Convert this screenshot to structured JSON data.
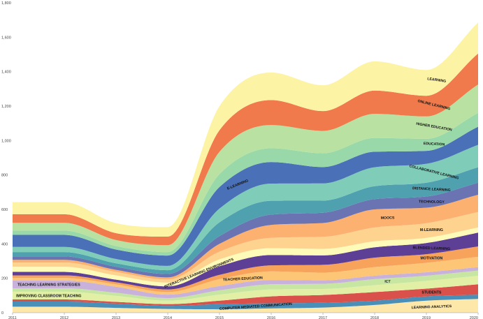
{
  "chart_data": {
    "type": "area",
    "subtype": "streamgraph",
    "title": "",
    "xlabel": "",
    "ylabel": "",
    "x": [
      2011,
      2012,
      2013,
      2014,
      2015,
      2016,
      2017,
      2018,
      2019,
      2020
    ],
    "ylim": [
      0,
      1800
    ],
    "yticks": [
      0,
      200,
      400,
      600,
      800,
      1000,
      1200,
      1400,
      1600,
      1800
    ],
    "ytick_labels": [
      "0",
      "200",
      "400",
      "600",
      "800",
      "1,000",
      "1,200",
      "1,400",
      "1,600",
      "1,800"
    ],
    "xtick_labels": [
      "2011",
      "2012",
      "2013",
      "2014",
      "2015",
      "2016",
      "2017",
      "2018",
      "2019",
      "2020"
    ],
    "series": [
      {
        "name": "LEARNING ANALYTICS",
        "color": "#fde7a9",
        "values": [
          35,
          35,
          28,
          22,
          20,
          25,
          30,
          45,
          70,
          80
        ]
      },
      {
        "name": "COMPUTER MEDIATED COMMUNICATION",
        "color": "#4a8fb8",
        "values": [
          30,
          30,
          25,
          18,
          30,
          30,
          28,
          25,
          25,
          25
        ]
      },
      {
        "name": "STUDENTS",
        "color": "#d9514a",
        "values": [
          12,
          12,
          10,
          10,
          20,
          40,
          45,
          50,
          45,
          60
        ]
      },
      {
        "name": "IMPROVING CLASSROOM TEACHING",
        "color": "#e2f0a6",
        "values": [
          45,
          45,
          35,
          20,
          35,
          40,
          35,
          40,
          45,
          50
        ]
      },
      {
        "name": "ICT",
        "color": "#c7e6a2",
        "values": [
          20,
          20,
          18,
          15,
          25,
          30,
          30,
          35,
          30,
          30
        ]
      },
      {
        "name": "TEACHING LEARNING STRATEGIES",
        "color": "#c8b2dc",
        "values": [
          45,
          45,
          35,
          20,
          25,
          25,
          20,
          20,
          20,
          20
        ]
      },
      {
        "name": "TEACHER EDUCATION",
        "color": "#fdc576",
        "values": [
          15,
          15,
          14,
          15,
          40,
          50,
          45,
          50,
          55,
          60
        ]
      },
      {
        "name": "MOTIVATION",
        "color": "#f7a35c",
        "values": [
          15,
          15,
          12,
          15,
          25,
          35,
          45,
          55,
          50,
          60
        ]
      },
      {
        "name": "BLENDED LEARNING",
        "color": "#5e3f96",
        "values": [
          20,
          20,
          15,
          18,
          50,
          60,
          55,
          60,
          65,
          80
        ]
      },
      {
        "name": "INTERACTIVE LEARNING ENVIRONMENTS",
        "color": "#fefab8",
        "values": [
          30,
          30,
          25,
          22,
          40,
          40,
          38,
          35,
          30,
          30
        ]
      },
      {
        "name": "M-LEARNING",
        "color": "#fed28f",
        "values": [
          25,
          25,
          20,
          18,
          45,
          60,
          70,
          80,
          85,
          90
        ]
      },
      {
        "name": "MOOCS",
        "color": "#fdb170",
        "values": [
          15,
          15,
          12,
          12,
          45,
          75,
          80,
          105,
          90,
          100
        ]
      },
      {
        "name": "TECHNOLOGY",
        "color": "#6a74b3",
        "values": [
          20,
          20,
          18,
          20,
          45,
          60,
          60,
          60,
          65,
          70
        ]
      },
      {
        "name": "DISTANCE LEARNING",
        "color": "#4fa1b0",
        "values": [
          25,
          25,
          20,
          22,
          80,
          80,
          70,
          75,
          80,
          90
        ]
      },
      {
        "name": "COLLABORATIVE LEARNING",
        "color": "#7fccb9",
        "values": [
          30,
          30,
          25,
          25,
          80,
          100,
          100,
          110,
          110,
          130
        ]
      },
      {
        "name": "E-LEARNING",
        "color": "#4a70b8",
        "values": [
          70,
          70,
          55,
          60,
          125,
          125,
          95,
          90,
          75,
          105
        ]
      },
      {
        "name": "EDUCATION",
        "color": "#99d8a8",
        "values": [
          25,
          25,
          20,
          20,
          75,
          80,
          80,
          80,
          70,
          80
        ]
      },
      {
        "name": "HIGHER EDUCATION",
        "color": "#b9e2a2",
        "values": [
          45,
          45,
          35,
          40,
          130,
          135,
          130,
          140,
          130,
          165
        ]
      },
      {
        "name": "ONLINE LEARNING",
        "color": "#f07a4c",
        "values": [
          50,
          50,
          40,
          50,
          125,
          145,
          115,
          135,
          120,
          180
        ]
      },
      {
        "name": "LEARNING",
        "color": "#fdf3a5",
        "values": [
          70,
          70,
          58,
          55,
          140,
          160,
          150,
          170,
          150,
          180
        ]
      }
    ]
  }
}
